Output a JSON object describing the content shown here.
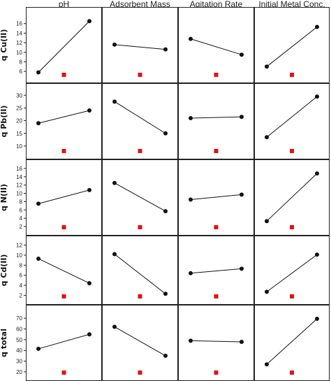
{
  "chart_data": {
    "type": "line",
    "columns": [
      "pH",
      "Adsorbent Mass",
      "Agitation Rate",
      "Initial Metal Conc."
    ],
    "rows": [
      {
        "label": "q Cu(II)",
        "ylim": [
          5,
          18
        ],
        "ticks": [
          6,
          8,
          10,
          12,
          14,
          16
        ],
        "series": [
          {
            "column": "pH",
            "values": [
              5.8,
              16.5
            ]
          },
          {
            "column": "Adsorbent Mass",
            "values": [
              11.6,
              10.6
            ]
          },
          {
            "column": "Agitation Rate",
            "values": [
              12.8,
              9.5
            ]
          },
          {
            "column": "Initial Metal Conc.",
            "values": [
              7.0,
              15.3
            ]
          }
        ]
      },
      {
        "label": "q Pb(II)",
        "ylim": [
          7.5,
          32
        ],
        "ticks": [
          10,
          15,
          20,
          25,
          30
        ],
        "series": [
          {
            "column": "pH",
            "values": [
              19.0,
              24.0
            ]
          },
          {
            "column": "Adsorbent Mass",
            "values": [
              27.5,
              15.0
            ]
          },
          {
            "column": "Agitation Rate",
            "values": [
              21.0,
              21.5
            ]
          },
          {
            "column": "Initial Metal Conc.",
            "values": [
              13.5,
              29.5
            ]
          }
        ]
      },
      {
        "label": "q N(II)",
        "ylim": [
          1.5,
          16.5
        ],
        "ticks": [
          2,
          4,
          6,
          8,
          10,
          12,
          14,
          16
        ],
        "series": [
          {
            "column": "pH",
            "values": [
              7.5,
              10.8
            ]
          },
          {
            "column": "Adsorbent Mass",
            "values": [
              12.5,
              5.7
            ]
          },
          {
            "column": "Agitation Rate",
            "values": [
              8.5,
              9.7
            ]
          },
          {
            "column": "Initial Metal Conc.",
            "values": [
              3.3,
              14.8
            ]
          }
        ]
      },
      {
        "label": "q Cd(II)",
        "ylim": [
          1.5,
          12.5
        ],
        "ticks": [
          2,
          4,
          6,
          8,
          10,
          12
        ],
        "series": [
          {
            "column": "pH",
            "values": [
              9.3,
              4.4
            ]
          },
          {
            "column": "Adsorbent Mass",
            "values": [
              10.2,
              2.3
            ]
          },
          {
            "column": "Agitation Rate",
            "values": [
              6.4,
              7.3
            ]
          },
          {
            "column": "Initial Metal Conc.",
            "values": [
              2.7,
              10.1
            ]
          }
        ]
      },
      {
        "label": "q total",
        "ylim": [
          18,
          76
        ],
        "ticks": [
          20,
          30,
          40,
          50,
          60,
          70
        ],
        "series": [
          {
            "column": "pH",
            "values": [
              41.5,
              55.0
            ]
          },
          {
            "column": "Adsorbent Mass",
            "values": [
              62.0,
              35.0
            ]
          },
          {
            "column": "Agitation Rate",
            "values": [
              49.0,
              48.0
            ]
          },
          {
            "column": "Initial Metal Conc.",
            "values": [
              27.0,
              69.5
            ]
          }
        ]
      }
    ],
    "marker_color": "#e81010",
    "line_color": "#111111",
    "grid": false,
    "legend": "none"
  }
}
